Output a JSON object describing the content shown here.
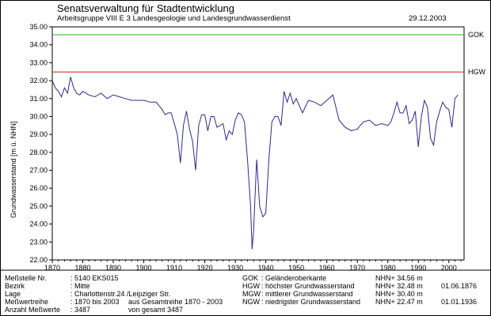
{
  "header": {
    "title": "Senatsverwaltung für Stadtentwicklung",
    "subtitle": "Arbeitsgruppe VIII E 3  Landesgeologie und Landesgrundwasserdienst",
    "date": "29.12.2003"
  },
  "chart_data": {
    "type": "line",
    "title": "",
    "xlabel": "",
    "ylabel": "Grundwasserstand   [m ü. NHN]",
    "xlim": [
      1870,
      2005
    ],
    "ylim": [
      22.0,
      35.0
    ],
    "x_ticks": [
      1870,
      1880,
      1890,
      1900,
      1910,
      1920,
      1930,
      1940,
      1950,
      1960,
      1970,
      1980,
      1990,
      2000
    ],
    "y_ticks": [
      22.0,
      23.0,
      24.0,
      25.0,
      26.0,
      27.0,
      28.0,
      29.0,
      30.0,
      31.0,
      32.0,
      33.0,
      34.0,
      35.0
    ],
    "reference_lines": [
      {
        "label": "GOK",
        "value": 34.56,
        "color": "#22bb22"
      },
      {
        "label": "HGW",
        "value": 32.48,
        "color": "#cc2222"
      }
    ],
    "series": [
      {
        "name": "Grundwasserstand EKS015",
        "color": "#2b2b8f",
        "x": [
          1870,
          1871,
          1872,
          1873,
          1874,
          1875,
          1876,
          1877,
          1878,
          1879,
          1880,
          1882,
          1884,
          1886,
          1888,
          1890,
          1892,
          1894,
          1896,
          1898,
          1900,
          1902,
          1904,
          1905,
          1906,
          1907,
          1908,
          1909,
          1910,
          1911,
          1912,
          1913,
          1914,
          1915,
          1916,
          1917,
          1918,
          1919,
          1920,
          1921,
          1922,
          1923,
          1924,
          1925,
          1926,
          1927,
          1928,
          1929,
          1930,
          1931,
          1932,
          1933,
          1934,
          1935,
          1935.5,
          1936,
          1936.5,
          1937,
          1938,
          1939,
          1940,
          1941,
          1942,
          1943,
          1944,
          1945,
          1946,
          1947,
          1948,
          1949,
          1950,
          1952,
          1954,
          1956,
          1958,
          1960,
          1962,
          1964,
          1966,
          1968,
          1970,
          1972,
          1974,
          1976,
          1978,
          1980,
          1981,
          1982,
          1983,
          1984,
          1985,
          1986,
          1987,
          1988,
          1989,
          1990,
          1991,
          1992,
          1993,
          1994,
          1995,
          1996,
          1997,
          1998,
          1999,
          2000,
          2001,
          2002,
          2003
        ],
        "values": [
          32.0,
          31.6,
          31.4,
          31.1,
          31.6,
          31.3,
          32.2,
          31.6,
          31.3,
          31.2,
          31.4,
          31.2,
          31.1,
          31.3,
          31.0,
          31.2,
          31.1,
          31.0,
          30.9,
          30.9,
          30.9,
          30.8,
          30.8,
          30.6,
          30.4,
          30.1,
          30.2,
          30.2,
          29.6,
          29.0,
          27.4,
          29.5,
          30.3,
          29.3,
          28.6,
          27.0,
          29.5,
          30.1,
          30.1,
          29.2,
          30.0,
          30.0,
          29.4,
          29.5,
          29.6,
          28.7,
          29.2,
          29.0,
          29.8,
          30.2,
          30.1,
          29.7,
          27.6,
          25.0,
          22.6,
          23.6,
          25.6,
          27.6,
          25.0,
          24.4,
          24.6,
          27.6,
          29.7,
          30.0,
          30.0,
          29.5,
          31.4,
          30.8,
          31.3,
          30.7,
          31.0,
          30.2,
          30.9,
          30.8,
          30.6,
          30.9,
          31.2,
          29.8,
          29.4,
          29.2,
          29.3,
          29.7,
          29.8,
          29.5,
          29.6,
          29.5,
          29.7,
          30.2,
          30.8,
          30.2,
          30.2,
          30.6,
          29.6,
          29.8,
          30.3,
          28.3,
          30.0,
          30.9,
          30.5,
          28.8,
          28.4,
          29.7,
          30.3,
          30.8,
          30.5,
          30.4,
          29.4,
          31.0,
          31.2
        ]
      }
    ]
  },
  "station": {
    "label_station": "Meßstelle Nr.",
    "value_station": ": 5140  EKS015",
    "label_district": "Bezirk",
    "value_district": ": Mitte",
    "label_location": "Lage",
    "value_location": ": Charlottenstr.24 /Leipziger Str.",
    "label_series": "Meßwertreihe",
    "value_series": ": 1870 bis 2003",
    "value_series_total": "aus Gesamtreihe 1870 - 2003",
    "label_count": "Anzahl Meßwerte",
    "value_count": ": 3487",
    "value_count_total": "von gesamt      3487"
  },
  "legend_rows": [
    {
      "abbr": "GOK",
      "desc": ": Geländeroberkante",
      "value": "NHN+  34.56  m",
      "date": ""
    },
    {
      "abbr": "HGW",
      "desc": ": höchster Grundwasserstand",
      "value": "NHN+  32.48  m",
      "date": "01.06.1876"
    },
    {
      "abbr": "MGW",
      "desc": ": mittlerer Grundwasserstand",
      "value": "NHN+  30.40  m",
      "date": ""
    },
    {
      "abbr": "NGW",
      "desc": ": niedrigster Grundwasserstand",
      "value": "NHN+  22.47  m",
      "date": "01.01.1936"
    }
  ]
}
